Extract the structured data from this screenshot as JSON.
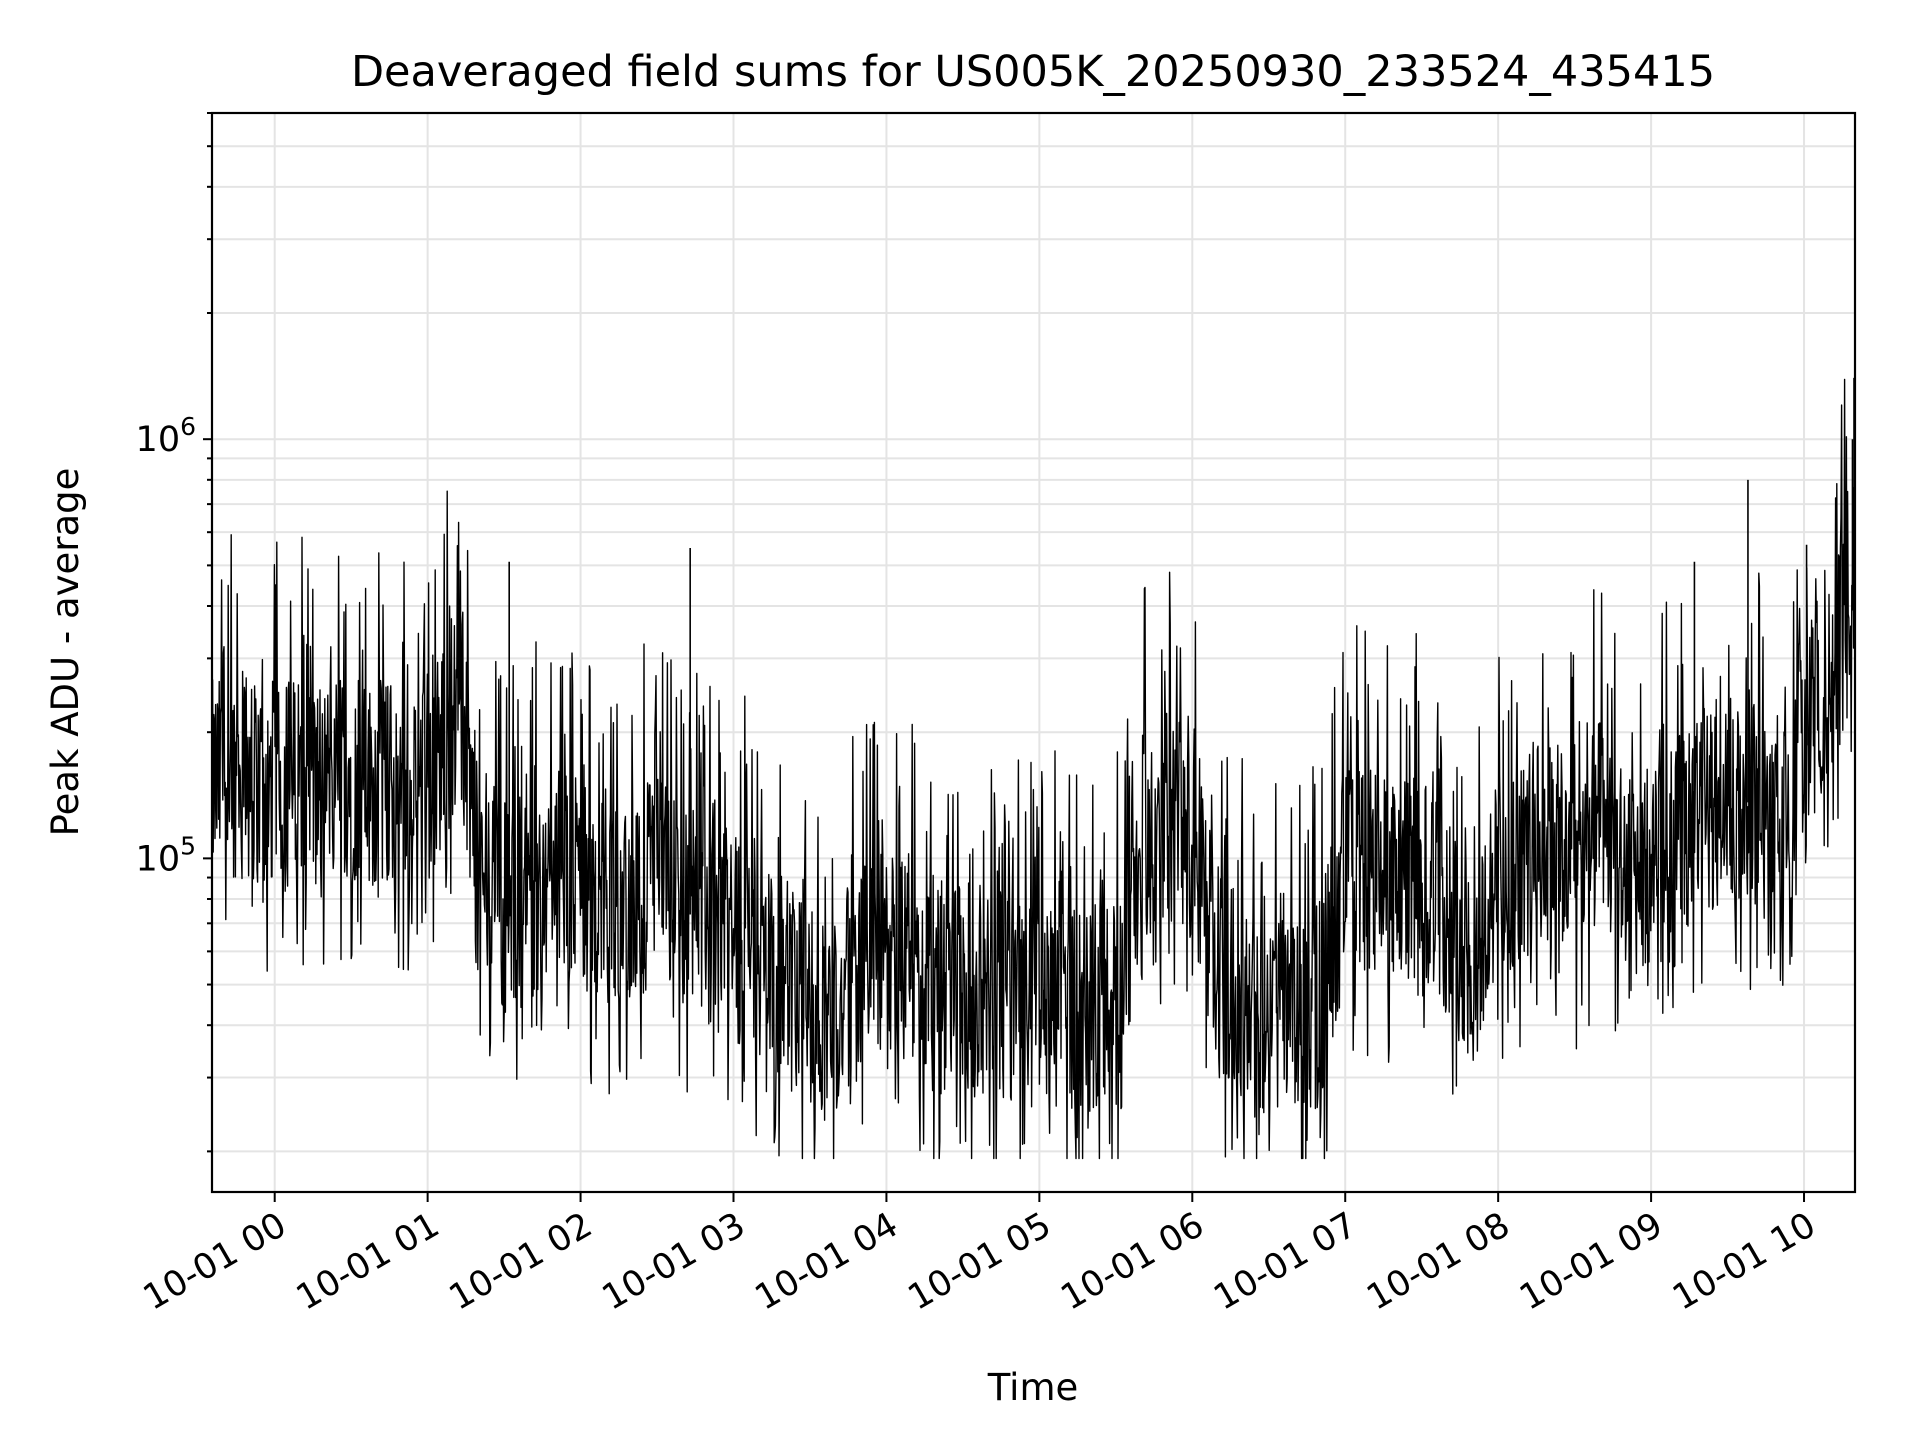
{
  "chart_data": {
    "type": "line",
    "title": "Deaveraged field sums for US005K_20250930_233524_435415",
    "xlabel": "Time",
    "ylabel": "Peak ADU - average",
    "yscale": "log",
    "ylim": [
      16000,
      6000000
    ],
    "xlim": [
      "2025-09-30 23:35:24",
      "2025-10-01 10:20:00"
    ],
    "grid": true,
    "x_ticks": [
      {
        "value": "2025-10-01 00:00",
        "label": "10-01 00"
      },
      {
        "value": "2025-10-01 01:00",
        "label": "10-01 01"
      },
      {
        "value": "2025-10-01 02:00",
        "label": "10-01 02"
      },
      {
        "value": "2025-10-01 03:00",
        "label": "10-01 03"
      },
      {
        "value": "2025-10-01 04:00",
        "label": "10-01 04"
      },
      {
        "value": "2025-10-01 05:00",
        "label": "10-01 05"
      },
      {
        "value": "2025-10-01 06:00",
        "label": "10-01 06"
      },
      {
        "value": "2025-10-01 07:00",
        "label": "10-01 07"
      },
      {
        "value": "2025-10-01 08:00",
        "label": "10-01 08"
      },
      {
        "value": "2025-10-01 09:00",
        "label": "10-01 09"
      },
      {
        "value": "2025-10-01 10:00",
        "label": "10-01 10"
      }
    ],
    "y_ticks": [
      {
        "value": 100000,
        "base": "10",
        "exp": "5"
      },
      {
        "value": 1000000,
        "base": "10",
        "exp": "6"
      }
    ],
    "line_color": "#000000",
    "series": [
      {
        "x": [
          "2025-09-30 23:35",
          "2025-09-30 23:45",
          "2025-09-30 23:55",
          "2025-10-01 00:05",
          "2025-10-01 00:15",
          "2025-10-01 00:25",
          "2025-10-01 00:35",
          "2025-10-01 00:45",
          "2025-10-01 00:55",
          "2025-10-01 01:05",
          "2025-10-01 01:10",
          "2025-10-01 01:15",
          "2025-10-01 01:20",
          "2025-10-01 01:30",
          "2025-10-01 01:40",
          "2025-10-01 01:50",
          "2025-10-01 02:00",
          "2025-10-01 02:10",
          "2025-10-01 02:20",
          "2025-10-01 02:30",
          "2025-10-01 02:40",
          "2025-10-01 02:50",
          "2025-10-01 03:00",
          "2025-10-01 03:10",
          "2025-10-01 03:20",
          "2025-10-01 03:30",
          "2025-10-01 03:40",
          "2025-10-01 03:50",
          "2025-10-01 04:00",
          "2025-10-01 04:10",
          "2025-10-01 04:20",
          "2025-10-01 04:30",
          "2025-10-01 04:40",
          "2025-10-01 04:50",
          "2025-10-01 05:00",
          "2025-10-01 05:10",
          "2025-10-01 05:20",
          "2025-10-01 05:30",
          "2025-10-01 05:40",
          "2025-10-01 05:50",
          "2025-10-01 06:00",
          "2025-10-01 06:10",
          "2025-10-01 06:20",
          "2025-10-01 06:30",
          "2025-10-01 06:40",
          "2025-10-01 06:50",
          "2025-10-01 07:00",
          "2025-10-01 07:10",
          "2025-10-01 07:20",
          "2025-10-01 07:30",
          "2025-10-01 07:40",
          "2025-10-01 07:50",
          "2025-10-01 08:00",
          "2025-10-01 08:10",
          "2025-10-01 08:20",
          "2025-10-01 08:30",
          "2025-10-01 08:40",
          "2025-10-01 08:50",
          "2025-10-01 09:00",
          "2025-10-01 09:10",
          "2025-10-01 09:20",
          "2025-10-01 09:30",
          "2025-10-01 09:40",
          "2025-10-01 09:50",
          "2025-10-01 10:00",
          "2025-10-01 10:10",
          "2025-10-01 10:18"
        ],
        "y": [
          150000,
          160000,
          150000,
          155000,
          150000,
          160000,
          150000,
          150000,
          145000,
          180000,
          220000,
          200000,
          90000,
          75000,
          80000,
          95000,
          85000,
          75000,
          80000,
          90000,
          75000,
          70000,
          65000,
          60000,
          50000,
          45000,
          40000,
          55000,
          60000,
          55000,
          48000,
          50000,
          48000,
          47000,
          46000,
          45000,
          44000,
          45000,
          110000,
          130000,
          105000,
          55000,
          45000,
          40000,
          42000,
          45000,
          95000,
          90000,
          85000,
          90000,
          75000,
          55000,
          90000,
          100000,
          110000,
          95000,
          120000,
          90000,
          95000,
          110000,
          130000,
          140000,
          135000,
          110000,
          180000,
          250000,
          400000
        ],
        "spikes": [
          {
            "x": "2025-10-01 01:32",
            "y": 510000
          },
          {
            "x": "2025-10-01 02:43",
            "y": 550000
          },
          {
            "x": "2025-10-01 09:17",
            "y": 510000
          },
          {
            "x": "2025-10-01 09:38",
            "y": 800000
          },
          {
            "x": "2025-10-01 10:01",
            "y": 560000
          },
          {
            "x": "2025-10-01 10:19",
            "y": 1000000
          },
          {
            "x": "2025-10-01 10:20",
            "y": 1400000
          }
        ]
      }
    ]
  }
}
